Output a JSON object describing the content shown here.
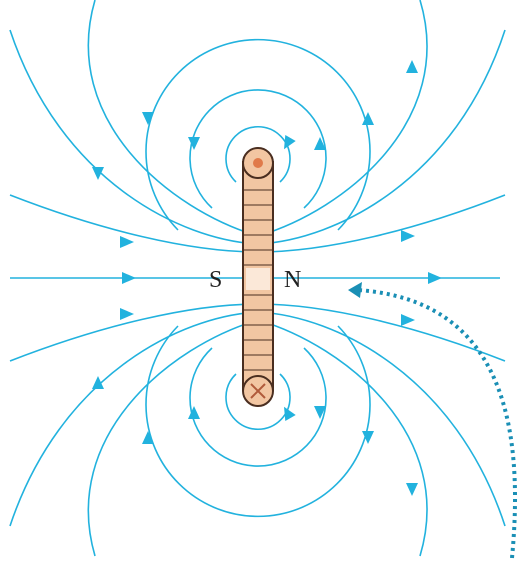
{
  "poles": {
    "south": "S",
    "north": "N"
  }
}
